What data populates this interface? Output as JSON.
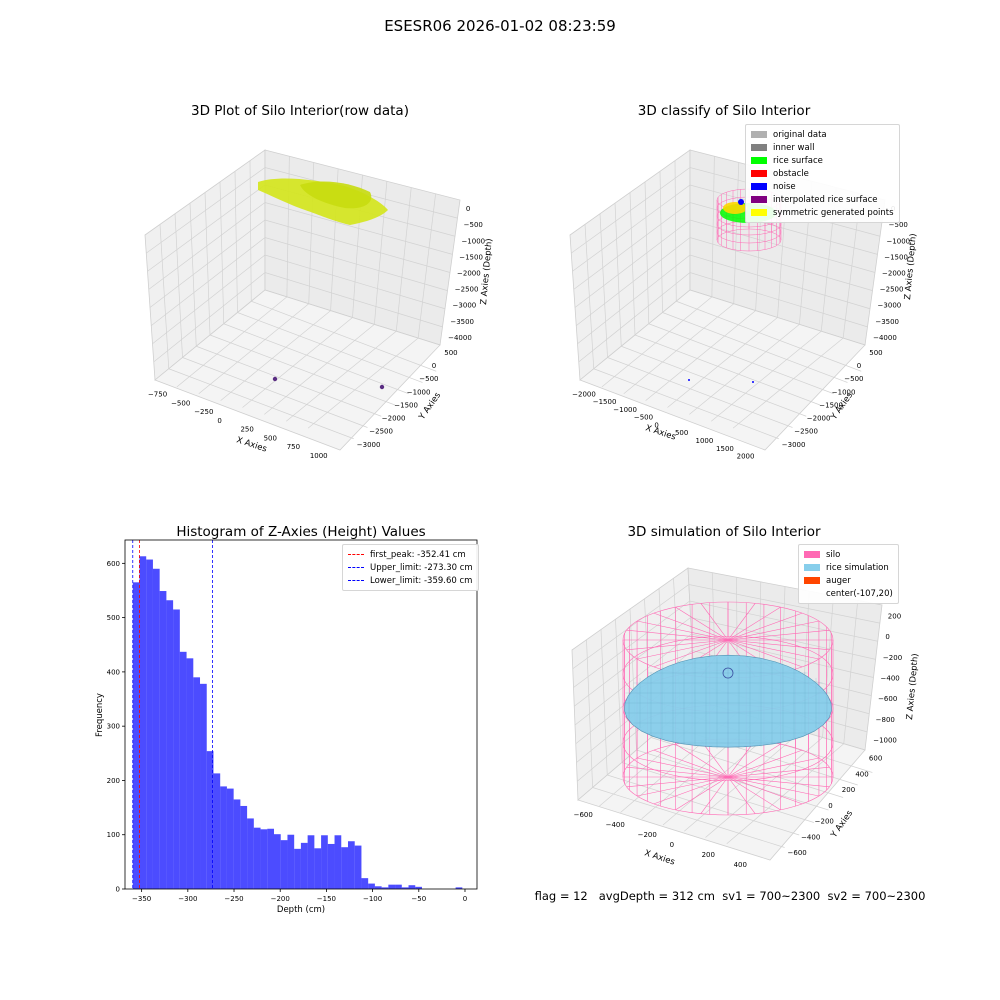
{
  "suptitle": "ESESR06 2026-01-02 08:23:59",
  "panels": {
    "raw": {
      "title": "3D Plot of Silo Interior(row data)",
      "xlabel": "X Axies",
      "ylabel": "Y Axies",
      "zlabel": "Z Axies (Depth)",
      "x_ticks": [
        "−750",
        "−500",
        "−250",
        "0",
        "250",
        "500",
        "750",
        "1000"
      ],
      "y_ticks": [
        "500",
        "0",
        "−500",
        "−1000",
        "−1500",
        "−2000",
        "−2500",
        "−3000"
      ],
      "z_ticks": [
        "0",
        "−500",
        "−1000",
        "−1500",
        "−2000",
        "−2500",
        "−3000",
        "−3500",
        "−4000"
      ],
      "point_color": "#d4e61a",
      "outlier_color": "#5a2d82"
    },
    "classify": {
      "title": "3D classify of Silo Interior",
      "xlabel": "X Axies",
      "ylabel": "Y Axies",
      "zlabel": "Z Axies (Depth)",
      "x_ticks": [
        "−2000",
        "−1500",
        "−1000",
        "−500",
        "0",
        "500",
        "1000",
        "1500",
        "2000"
      ],
      "y_ticks": [
        "500",
        "0",
        "−500",
        "−1000",
        "−1500",
        "−2000",
        "−2500",
        "−3000"
      ],
      "z_ticks": [
        "0",
        "−500",
        "−1000",
        "−1500",
        "−2000",
        "−2500",
        "−3000",
        "−3500",
        "−4000"
      ],
      "legend": [
        {
          "label": "original data",
          "color": "#b0b0b0"
        },
        {
          "label": "inner wall",
          "color": "#808080"
        },
        {
          "label": "rice surface",
          "color": "#00ff00"
        },
        {
          "label": "obstacle",
          "color": "#ff0000"
        },
        {
          "label": "noise",
          "color": "#0000ff"
        },
        {
          "label": "interpolated rice surface",
          "color": "#800080"
        },
        {
          "label": "symmetric generated points",
          "color": "#ffff00"
        }
      ],
      "wire_color": "#ff69b4"
    },
    "simulation": {
      "title": "3D simulation of Silo Interior",
      "xlabel": "X Axies",
      "ylabel": "Y Axies",
      "zlabel": "Z Axies (Depth)",
      "x_ticks": [
        "−600",
        "−400",
        "−200",
        "0",
        "200",
        "400"
      ],
      "y_ticks": [
        "600",
        "400",
        "200",
        "0",
        "−200",
        "−400",
        "−600"
      ],
      "z_ticks": [
        "200",
        "0",
        "−200",
        "−400",
        "−600",
        "−800",
        "−1000"
      ],
      "legend": [
        {
          "label": "silo",
          "color": "#ff69b4"
        },
        {
          "label": "rice simulation",
          "color": "#87ceeb"
        },
        {
          "label": "auger",
          "color": "#ff4500"
        },
        {
          "label": "center(-107,20)",
          "color": ""
        }
      ],
      "silo_color": "#ff69b4",
      "rice_color": "#87ceeb"
    }
  },
  "status_text": "flag = 12   avgDepth = 312 cm  sv1 = 700~2300  sv2 = 700~2300",
  "chart_data": {
    "type": "bar",
    "title": "Histogram of Z-Axies (Height) Values",
    "xlabel": "Depth (cm)",
    "ylabel": "Frequency",
    "xlim": [
      -368,
      13
    ],
    "ylim": [
      0,
      643
    ],
    "x_ticks": [
      -350,
      -300,
      -250,
      -200,
      -150,
      -100,
      -50,
      0
    ],
    "y_ticks": [
      0,
      100,
      200,
      300,
      400,
      500,
      600
    ],
    "bar_color": "#0000ff",
    "bin_width": 7.28,
    "bin_start": -359.6,
    "values": [
      565,
      613,
      607,
      590,
      549,
      532,
      515,
      437,
      425,
      390,
      378,
      254,
      213,
      189,
      185,
      165,
      153,
      130,
      113,
      110,
      111,
      101,
      90,
      100,
      74,
      85,
      99,
      75,
      99,
      83,
      99,
      77,
      88,
      80,
      20,
      10,
      5,
      3,
      8,
      8,
      3,
      7,
      4,
      0,
      0,
      0,
      0,
      0,
      3,
      0
    ],
    "vlines": [
      {
        "label": "first_peak: -352.41 cm",
        "x": -352.41,
        "color": "#ff0000"
      },
      {
        "label": "Upper_limit: -273.30 cm",
        "x": -273.3,
        "color": "#0000ff"
      },
      {
        "label": "Lower_limit: -359.60 cm",
        "x": -359.6,
        "color": "#0000ff"
      }
    ]
  }
}
